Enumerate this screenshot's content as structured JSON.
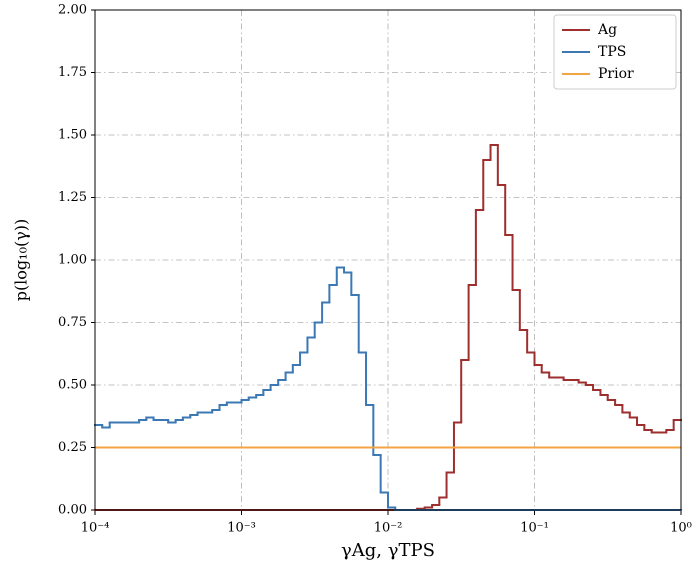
{
  "chart_data": {
    "type": "step-histogram",
    "xlabel": "γAg, γTPS",
    "ylabel": "p(log₁₀(γ))",
    "xscale": "log",
    "xlim": [
      0.0001,
      1
    ],
    "ylim": [
      0,
      2
    ],
    "xticks": [
      {
        "value": 0.0001,
        "label": "10⁻⁴"
      },
      {
        "value": 0.001,
        "label": "10⁻³"
      },
      {
        "value": 0.01,
        "label": "10⁻²"
      },
      {
        "value": 0.1,
        "label": "10⁻¹"
      },
      {
        "value": 1,
        "label": "10⁰"
      }
    ],
    "yticks": [
      {
        "value": 0,
        "label": "0.00"
      },
      {
        "value": 0.25,
        "label": "0.25"
      },
      {
        "value": 0.5,
        "label": "0.50"
      },
      {
        "value": 0.75,
        "label": "0.75"
      },
      {
        "value": 1,
        "label": "1.00"
      },
      {
        "value": 1.25,
        "label": "1.25"
      },
      {
        "value": 1.5,
        "label": "1.50"
      },
      {
        "value": 1.75,
        "label": "1.75"
      },
      {
        "value": 2,
        "label": "2.00"
      }
    ],
    "grid": true,
    "legend": "upper right",
    "bins": [
      0.0001,
      0.000112,
      0.000126,
      0.000141,
      0.000158,
      0.000178,
      0.0002,
      0.000224,
      0.000251,
      0.000282,
      0.000316,
      0.000355,
      0.000398,
      0.000447,
      0.000501,
      0.000562,
      0.000631,
      0.000708,
      0.000794,
      0.000891,
      0.001,
      0.00112,
      0.00126,
      0.00141,
      0.00158,
      0.00178,
      0.002,
      0.00224,
      0.00251,
      0.00282,
      0.00316,
      0.00355,
      0.00398,
      0.00447,
      0.00501,
      0.00562,
      0.00631,
      0.00708,
      0.00794,
      0.00891,
      0.01,
      0.0112,
      0.0126,
      0.0141,
      0.0158,
      0.0178,
      0.02,
      0.0224,
      0.0251,
      0.0282,
      0.0316,
      0.0355,
      0.0398,
      0.0447,
      0.0501,
      0.0562,
      0.0631,
      0.0708,
      0.0794,
      0.0891,
      0.1,
      0.112,
      0.126,
      0.141,
      0.158,
      0.178,
      0.2,
      0.224,
      0.251,
      0.282,
      0.316,
      0.355,
      0.398,
      0.447,
      0.501,
      0.562,
      0.631,
      0.708,
      0.794,
      0.891,
      1
    ],
    "series": [
      {
        "name": "Ag",
        "color": "#9e2f2f",
        "values": [
          0,
          0,
          0,
          0,
          0,
          0,
          0,
          0,
          0,
          0,
          0,
          0,
          0,
          0,
          0,
          0,
          0,
          0,
          0,
          0,
          0,
          0,
          0,
          0,
          0,
          0,
          0,
          0,
          0,
          0,
          0,
          0,
          0,
          0,
          0,
          0,
          0,
          0,
          0,
          0,
          0,
          0,
          0,
          0,
          0.005,
          0.01,
          0.02,
          0.05,
          0.15,
          0.35,
          0.6,
          0.9,
          1.2,
          1.4,
          1.46,
          1.3,
          1.1,
          0.88,
          0.72,
          0.63,
          0.58,
          0.55,
          0.53,
          0.53,
          0.52,
          0.52,
          0.51,
          0.5,
          0.48,
          0.46,
          0.44,
          0.42,
          0.39,
          0.37,
          0.34,
          0.32,
          0.31,
          0.31,
          0.32,
          0.36
        ]
      },
      {
        "name": "TPS",
        "color": "#3b78b4",
        "values": [
          0.34,
          0.33,
          0.35,
          0.35,
          0.35,
          0.35,
          0.36,
          0.37,
          0.36,
          0.36,
          0.35,
          0.36,
          0.37,
          0.38,
          0.39,
          0.39,
          0.4,
          0.42,
          0.43,
          0.43,
          0.44,
          0.45,
          0.46,
          0.48,
          0.5,
          0.52,
          0.55,
          0.58,
          0.63,
          0.69,
          0.75,
          0.83,
          0.9,
          0.97,
          0.95,
          0.86,
          0.63,
          0.42,
          0.22,
          0.07,
          0.01,
          0,
          0,
          0,
          0,
          0,
          0,
          0,
          0,
          0,
          0,
          0,
          0,
          0,
          0,
          0,
          0,
          0,
          0,
          0,
          0,
          0,
          0,
          0,
          0,
          0,
          0,
          0,
          0,
          0,
          0,
          0,
          0,
          0,
          0,
          0,
          0,
          0,
          0,
          0
        ]
      },
      {
        "name": "Prior",
        "color": "#f5a443",
        "value": 0.25
      }
    ]
  }
}
